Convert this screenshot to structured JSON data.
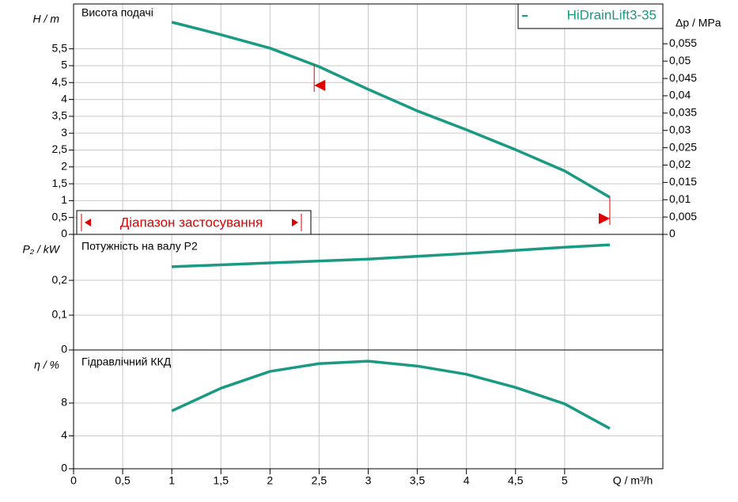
{
  "chart_data": [
    {
      "type": "line",
      "title": "Висота подачі",
      "y_label": "H / m",
      "y2_label": "Δp / MPa",
      "ylim": [
        0,
        6.83
      ],
      "yticks": [
        0,
        {
          "value": 0.5,
          "label": "0,5"
        },
        1,
        {
          "value": 1.5,
          "label": "1,5"
        },
        2,
        {
          "value": 2.5,
          "label": "2,5"
        },
        3,
        {
          "value": 3.5,
          "label": "3,5"
        },
        4,
        {
          "value": 4.5,
          "label": "4,5"
        },
        5,
        {
          "value": 5.5,
          "label": "5,5"
        }
      ],
      "y2lim": [
        0,
        0.0665
      ],
      "y2ticks": [
        0,
        {
          "value": 0.005,
          "label": "0,005"
        },
        {
          "value": 0.01,
          "label": "0,01"
        },
        {
          "value": 0.015,
          "label": "0,015"
        },
        {
          "value": 0.02,
          "label": "0,02"
        },
        {
          "value": 0.025,
          "label": "0,025"
        },
        {
          "value": 0.03,
          "label": "0,03"
        },
        {
          "value": 0.035,
          "label": "0,035"
        },
        {
          "value": 0.04,
          "label": "0,04"
        },
        {
          "value": 0.045,
          "label": "0,045"
        },
        {
          "value": 0.05,
          "label": "0,05"
        },
        {
          "value": 0.055,
          "label": "0,055"
        }
      ],
      "series": [
        {
          "name": "HiDrainLift3-35",
          "color": "#1a9a82",
          "x": [
            1,
            1.5,
            2,
            2.5,
            3,
            3.5,
            4,
            4.5,
            5,
            5.46
          ],
          "values": [
            6.29,
            5.92,
            5.52,
            4.97,
            4.3,
            3.66,
            3.1,
            2.51,
            1.88,
            1.1
          ]
        }
      ],
      "range_label": "Діапазон застосування",
      "operating_range": [
        2.45,
        5.46
      ],
      "range_color": "#e00000"
    },
    {
      "type": "line",
      "title": "Потужність на валу P2",
      "y_label": "P₂ / kW",
      "ylim": [
        0,
        0.332
      ],
      "yticks": [
        0,
        {
          "value": 0.1,
          "label": "0,1"
        },
        {
          "value": 0.2,
          "label": "0,2"
        }
      ],
      "series": [
        {
          "color": "#1a9a82",
          "x": [
            1,
            2,
            3,
            4,
            5,
            5.46
          ],
          "values": [
            0.239,
            0.25,
            0.261,
            0.277,
            0.295,
            0.302
          ]
        }
      ]
    },
    {
      "type": "line",
      "title": "Гідравлічний ККД",
      "y_label": "η / %",
      "x_label": "Q / m³/h",
      "ylim": [
        0,
        14.46
      ],
      "yticks": [
        0,
        4,
        8
      ],
      "xlim": [
        0,
        6
      ],
      "xticks": [
        0,
        {
          "value": 0.5,
          "label": "0,5"
        },
        1,
        {
          "value": 1.5,
          "label": "1,5"
        },
        2,
        {
          "value": 2.5,
          "label": "2,5"
        },
        3,
        {
          "value": 3.5,
          "label": "3,5"
        },
        4,
        {
          "value": 4.5,
          "label": "4,5"
        },
        5
      ],
      "series": [
        {
          "color": "#1a9a82",
          "x": [
            1,
            1.5,
            2,
            2.5,
            3,
            3.5,
            4,
            4.5,
            5,
            5.46
          ],
          "values": [
            7.04,
            9.8,
            11.85,
            12.8,
            13.1,
            12.5,
            11.5,
            9.9,
            7.9,
            4.9
          ]
        }
      ]
    }
  ]
}
